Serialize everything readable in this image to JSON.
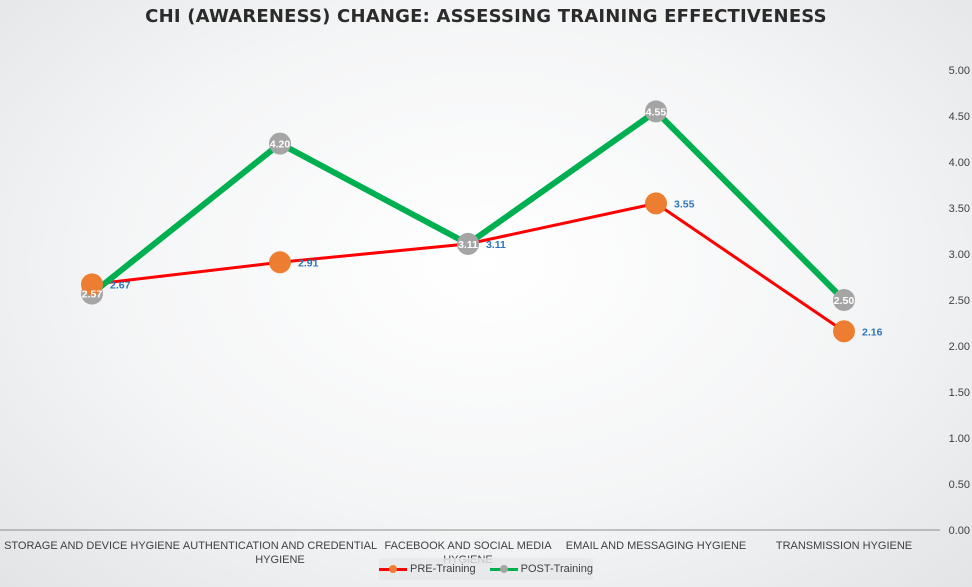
{
  "chart_data": {
    "type": "line",
    "title": "CHI (AWARENESS) CHANGE: ASSESSING TRAINING EFFECTIVENESS",
    "categories": [
      "STORAGE AND DEVICE HYGIENE",
      "AUTHENTICATION AND CREDENTIAL HYGIENE",
      "FACEBOOK AND SOCIAL MEDIA HYGIENE",
      "EMAIL AND MESSAGING HYGIENE",
      "TRANSMISSION HYGIENE"
    ],
    "series": [
      {
        "name": "PRE-Training",
        "values": [
          2.67,
          2.91,
          3.11,
          3.55,
          2.16
        ],
        "labels": [
          "2.67",
          "2.91",
          "3.11",
          "3.55",
          "2.16"
        ],
        "line_color": "#ff0000",
        "marker_color": "#ed7d31"
      },
      {
        "name": "POST-Training",
        "values": [
          2.57,
          4.2,
          3.11,
          4.55,
          2.5
        ],
        "labels": [
          "2.57",
          "4.20",
          "3.11",
          "4.55",
          "2.50"
        ],
        "line_color": "#00b050",
        "marker_color": "#a5a5a5"
      }
    ],
    "ylim": [
      0,
      5
    ],
    "y_ticks": [
      "0.00",
      "0.50",
      "1.00",
      "1.50",
      "2.00",
      "2.50",
      "3.00",
      "3.50",
      "4.00",
      "4.50",
      "5.00"
    ],
    "y_axis_position": "right",
    "grid": false,
    "legend_position": "bottom",
    "xlabel": "",
    "ylabel": ""
  }
}
